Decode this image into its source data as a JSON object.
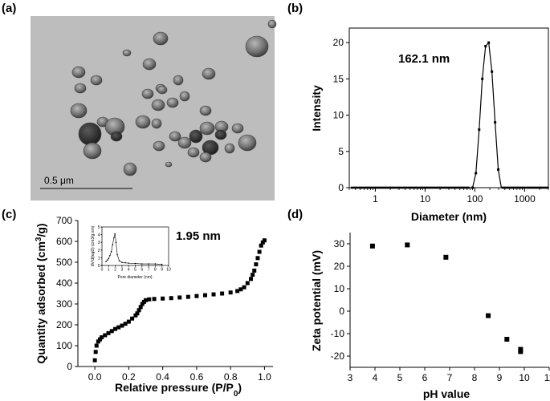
{
  "panels": {
    "a": {
      "label": "(a)",
      "scale_bar_label": "0.5 μm"
    },
    "b": {
      "label": "(b)"
    },
    "c": {
      "label": "(c)"
    },
    "d": {
      "label": "(d)"
    }
  },
  "chart_data": [
    {
      "id": "b",
      "type": "line",
      "xlabel": "Diameter (nm)",
      "ylabel": "Intensity",
      "x_scale": "log",
      "xlim": [
        0.3,
        3000
      ],
      "ylim": [
        0,
        22
      ],
      "x_ticks": [
        1,
        10,
        100,
        1000
      ],
      "x_tick_labels": [
        "1",
        "10",
        "100",
        "1000"
      ],
      "y_ticks": [
        0,
        5,
        10,
        15,
        20
      ],
      "annotation": "162.1 nm",
      "series": [
        {
          "x": [
            0.4,
            1,
            10,
            60,
            90,
            105,
            122,
            141,
            164,
            190,
            220,
            255,
            295,
            340,
            1000,
            3000
          ],
          "values": [
            0,
            0,
            0,
            0,
            0,
            2,
            8,
            15,
            19.5,
            20,
            16,
            9,
            2.5,
            0,
            0,
            0
          ]
        }
      ]
    },
    {
      "id": "c",
      "type": "scatter",
      "xlabel": "Relative pressure (P/P0)",
      "xlabel_main": "Relative pressure (P/P",
      "xlabel_sub": "0",
      "xlabel_end": ")",
      "ylabel": "Quantity adsorbed (cm3/g)",
      "ylabel_main": "Quantity adsorbed (cm",
      "ylabel_sup": "3",
      "ylabel_end": "/g)",
      "xlim": [
        -0.1,
        1.05
      ],
      "ylim": [
        0,
        700
      ],
      "x_ticks": [
        0.0,
        0.2,
        0.4,
        0.6,
        0.8,
        1.0
      ],
      "x_tick_labels": [
        "0.0",
        "0.2",
        "0.4",
        "0.6",
        "0.8",
        "1.0"
      ],
      "y_ticks": [
        0,
        100,
        200,
        300,
        400,
        500,
        600,
        700
      ],
      "series": [
        {
          "x": [
            0.0,
            0.005,
            0.01,
            0.02,
            0.03,
            0.04,
            0.06,
            0.08,
            0.1,
            0.12,
            0.14,
            0.16,
            0.18,
            0.2,
            0.22,
            0.24,
            0.25,
            0.26,
            0.27,
            0.28,
            0.29,
            0.3,
            0.32,
            0.35,
            0.4,
            0.45,
            0.5,
            0.55,
            0.6,
            0.65,
            0.7,
            0.75,
            0.8,
            0.84,
            0.86,
            0.88,
            0.9,
            0.92,
            0.93,
            0.94,
            0.95,
            0.96,
            0.97,
            0.98,
            0.99,
            1.0
          ],
          "values": [
            30,
            70,
            100,
            120,
            130,
            140,
            150,
            160,
            170,
            180,
            188,
            196,
            205,
            215,
            230,
            245,
            255,
            270,
            285,
            300,
            310,
            318,
            322,
            324,
            326,
            328,
            331,
            334,
            338,
            342,
            346,
            350,
            355,
            362,
            370,
            380,
            400,
            420,
            440,
            460,
            490,
            520,
            550,
            580,
            595,
            605
          ]
        }
      ]
    },
    {
      "id": "c_inset",
      "type": "line",
      "xlabel": "Pore diameter (nm)",
      "ylabel": "dV/d(logD) (cm3/g.nm)",
      "xlim": [
        0,
        10
      ],
      "ylim": [
        0,
        5
      ],
      "x_ticks": [
        0,
        1,
        2,
        3,
        4,
        5,
        6,
        7,
        8,
        9,
        10
      ],
      "y_ticks": [
        0,
        1,
        2,
        3,
        4,
        5
      ],
      "annotation": "1.95 nm",
      "series": [
        {
          "x": [
            0.6,
            0.8,
            1.0,
            1.2,
            1.4,
            1.6,
            1.8,
            1.95,
            2.1,
            2.3,
            2.6,
            3.0,
            3.5,
            4.0,
            5.0,
            6.0,
            7.0,
            8.0,
            9.0
          ],
          "values": [
            0.5,
            0.7,
            0.9,
            1.3,
            1.8,
            2.7,
            3.6,
            4.1,
            3.0,
            1.4,
            0.6,
            0.4,
            0.35,
            0.3,
            0.25,
            0.2,
            0.2,
            0.2,
            0.15
          ]
        }
      ]
    },
    {
      "id": "d",
      "type": "scatter",
      "xlabel": "pH value",
      "ylabel": "Zeta potential (mV)",
      "xlim": [
        3,
        11
      ],
      "ylim": [
        -25,
        35
      ],
      "x_ticks": [
        3,
        4,
        5,
        6,
        7,
        8,
        9,
        10,
        11
      ],
      "y_ticks": [
        -20,
        -10,
        0,
        10,
        20,
        30
      ],
      "series": [
        {
          "x": [
            3.9,
            5.3,
            6.85,
            8.55,
            9.3,
            9.85,
            9.85
          ],
          "values": [
            29,
            29.5,
            24,
            -2,
            -12.5,
            -17,
            -18
          ]
        }
      ]
    }
  ]
}
